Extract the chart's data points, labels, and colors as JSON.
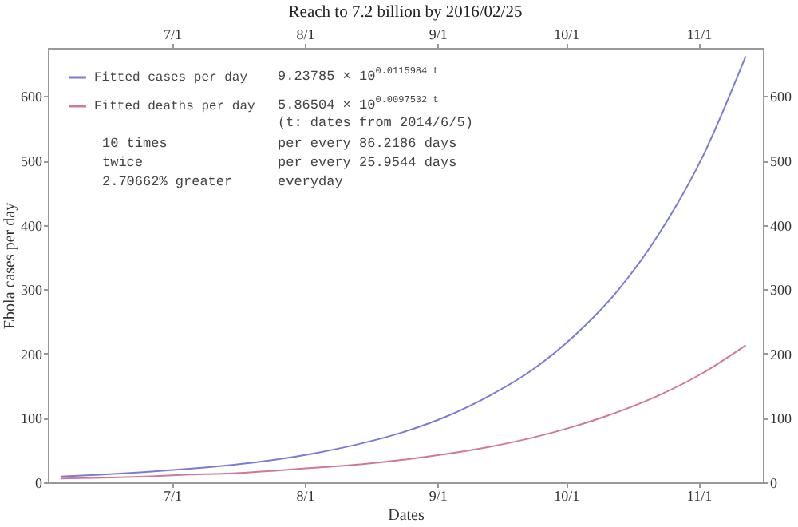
{
  "chart_data": {
    "type": "line",
    "title": "Reach to 7.2 billion by 2016/02/25",
    "xlabel": "Dates",
    "ylabel": "Ebola cases per day",
    "x": [
      "--06-05",
      "--06-15",
      "--06-25",
      "--07-05",
      "--07-15",
      "--07-25",
      "--08-04",
      "--08-14",
      "--08-24",
      "--09-03",
      "--09-13",
      "--09-23",
      "--10-03",
      "--10-13",
      "--10-23",
      "--11-02",
      "--11-12"
    ],
    "series": [
      {
        "name": "Fitted cases per day",
        "color": "#7b7bd6",
        "values": [
          9,
          12,
          16,
          21,
          27,
          35,
          46,
          60,
          78,
          102,
          134,
          174,
          228,
          297,
          389,
          507,
          662
        ]
      },
      {
        "name": "Fitted deaths per day",
        "color": "#d07898",
        "values": [
          6,
          7,
          9,
          12,
          14,
          18,
          23,
          28,
          35,
          44,
          55,
          69,
          87,
          109,
          136,
          170,
          213
        ]
      }
    ],
    "xlim": [
      "--06-02",
      "--11-16"
    ],
    "xticks": [
      {
        "value": "--07-01",
        "label": "7/1"
      },
      {
        "value": "--08-01",
        "label": "8/1"
      },
      {
        "value": "--09-01",
        "label": "9/1"
      },
      {
        "value": "--10-01",
        "label": "10/1"
      },
      {
        "value": "--11-01",
        "label": "11/1"
      }
    ],
    "x2lim": [
      "--06-02",
      "--11-16"
    ],
    "x2ticks": [
      {
        "value": "--07-01",
        "label": "7/1"
      },
      {
        "value": "--08-01",
        "label": "8/1"
      },
      {
        "value": "--09-01",
        "label": "9/1"
      },
      {
        "value": "--10-01",
        "label": "10/1"
      },
      {
        "value": "--11-01",
        "label": "11/1"
      }
    ],
    "ylim": [
      0,
      675
    ],
    "yticks": [
      0,
      100,
      200,
      300,
      400,
      500,
      600
    ],
    "y2lim": [
      0,
      675
    ],
    "y2ticks": [
      0,
      100,
      200,
      300,
      400,
      500,
      600
    ],
    "annotations": [
      "9.23785 × 10$^{0.0115984 t}$",
      "5.86504 × 10$^{0.0097532 t}$",
      "(t: dates from 2014/6/5)",
      "10 times",
      "per every 86.2186 days",
      "twice",
      "per every 25.9544 days",
      "2.70662% greater",
      "everyday"
    ],
    "legend": "top left",
    "grid": false,
    "marker": "none",
    "line_style": "solid"
  }
}
